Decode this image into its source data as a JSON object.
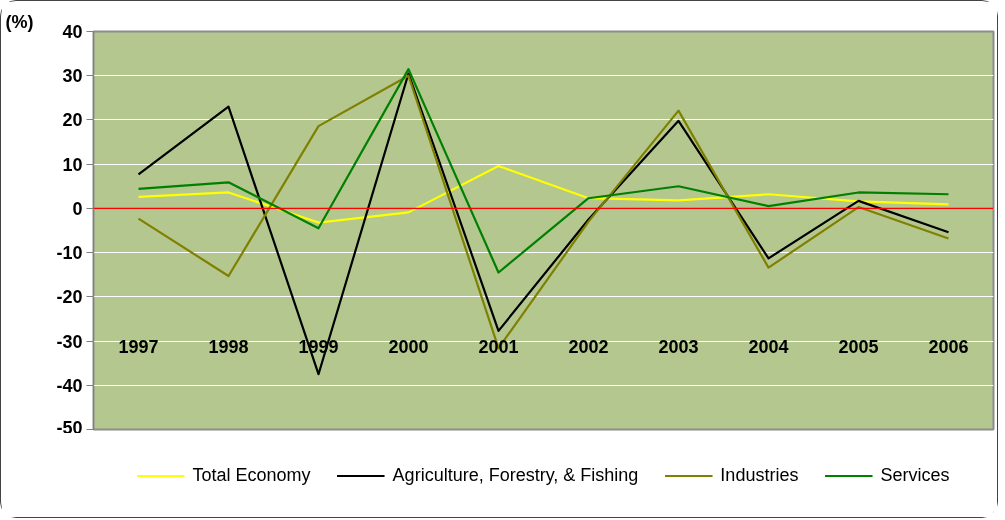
{
  "chart_data": {
    "type": "line",
    "ylabel": "(%)",
    "categories": [
      "1997",
      "1998",
      "1999",
      "2000",
      "2001",
      "2002",
      "2003",
      "2004",
      "2005",
      "2006"
    ],
    "series": [
      {
        "name": "Total Economy",
        "color": "#ffff00",
        "values": [
          2.6,
          3.6,
          -3.2,
          -0.9,
          9.6,
          2.3,
          1.8,
          3.2,
          1.6,
          0.9
        ]
      },
      {
        "name": "Agriculture, Forestry, & Fishing",
        "color": "#000000",
        "values": [
          7.7,
          23.0,
          -37.5,
          30.5,
          -27.7,
          -2.5,
          19.8,
          -11.3,
          1.7,
          -5.4
        ]
      },
      {
        "name": "Industries",
        "color": "#808000",
        "values": [
          -2.3,
          -15.3,
          18.6,
          30.0,
          -31.6,
          -3.0,
          22.1,
          -13.4,
          0.3,
          -6.8
        ]
      },
      {
        "name": "Services",
        "color": "#008000",
        "values": [
          4.4,
          5.9,
          -4.5,
          31.5,
          -14.5,
          2.3,
          5.0,
          0.5,
          3.6,
          3.2
        ]
      }
    ],
    "ylim": [
      -50,
      40
    ],
    "yticks": [
      -50,
      -40,
      -30,
      -20,
      -10,
      0,
      10,
      20,
      30,
      40
    ],
    "ref_lines": [
      {
        "axis": "y",
        "value": 0,
        "color": "#ff0000"
      }
    ],
    "grid": "y",
    "legend": "bottom",
    "marker": "none",
    "line_style": "solid"
  }
}
